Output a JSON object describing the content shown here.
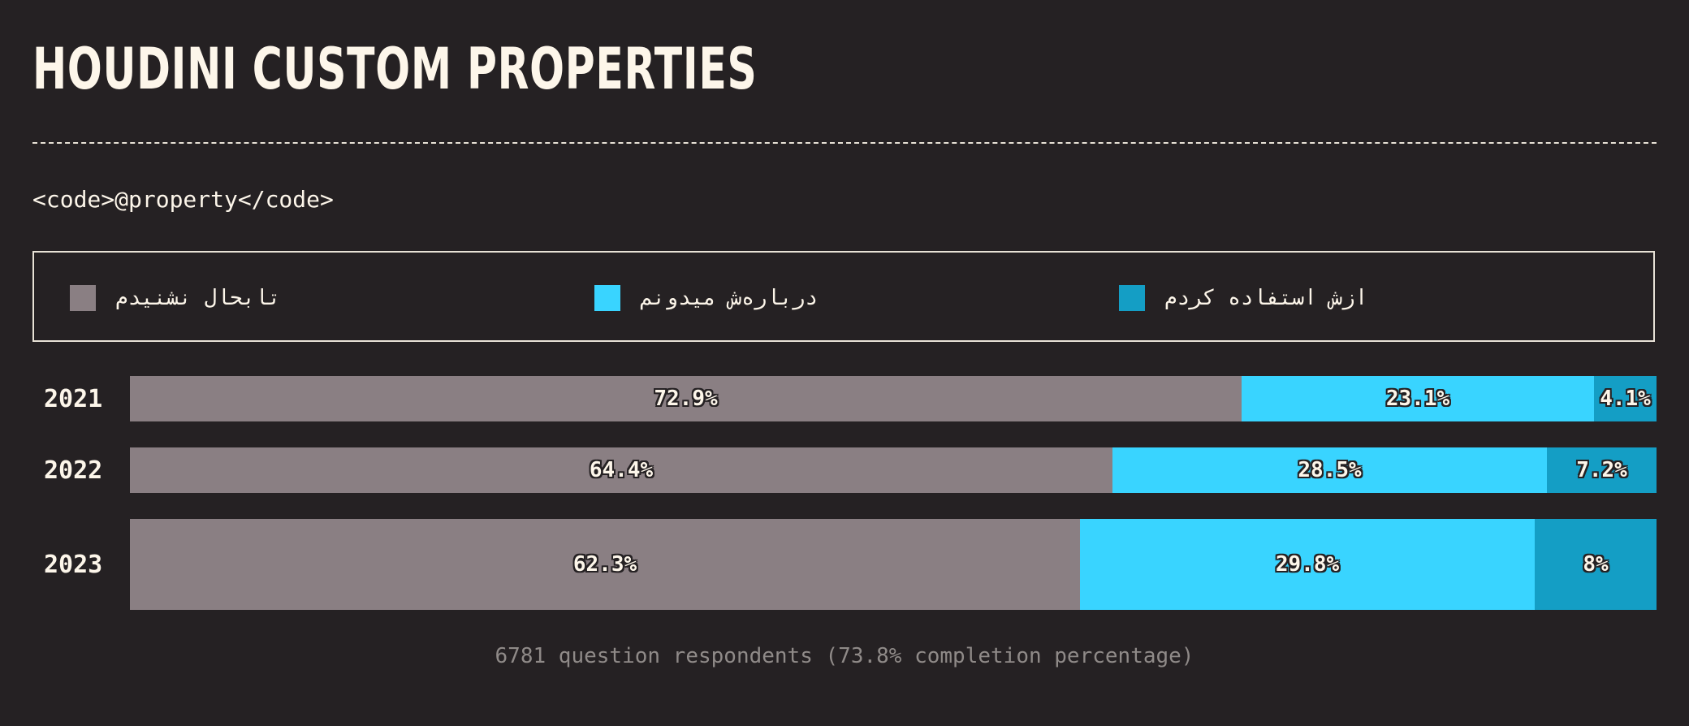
{
  "header": {
    "title": "HOUDINI CUSTOM PROPERTIES",
    "subtitle": "<code>@property</code>"
  },
  "legend": {
    "items": [
      {
        "label": "تابحال نشنیدم",
        "color": "#8a7f83"
      },
      {
        "label": "درباره‌ش میدونم",
        "color": "#39d4ff"
      },
      {
        "label": "ازش استفاده کردم",
        "color": "#149ec5"
      }
    ]
  },
  "chart_data": {
    "type": "bar",
    "orientation": "horizontal",
    "stacked": true,
    "categories": [
      "2021",
      "2022",
      "2023"
    ],
    "series": [
      {
        "name": "تابحال نشنیدم",
        "color": "#8a7f83",
        "values": [
          72.9,
          64.4,
          62.3
        ],
        "labels": [
          "72.9%",
          "64.4%",
          "62.3%"
        ]
      },
      {
        "name": "درباره‌ش میدونم",
        "color": "#39d4ff",
        "values": [
          23.1,
          28.5,
          29.8
        ],
        "labels": [
          "23.1%",
          "28.5%",
          "29.8%"
        ]
      },
      {
        "name": "ازش استفاده کردم",
        "color": "#149ec5",
        "values": [
          4.1,
          7.2,
          8
        ],
        "labels": [
          "4.1%",
          "7.2%",
          "8%"
        ]
      }
    ],
    "xlim": [
      0,
      100
    ],
    "grid": false,
    "legend_position": "top"
  },
  "footer": {
    "note": "6781 question respondents (73.8% completion percentage)"
  }
}
